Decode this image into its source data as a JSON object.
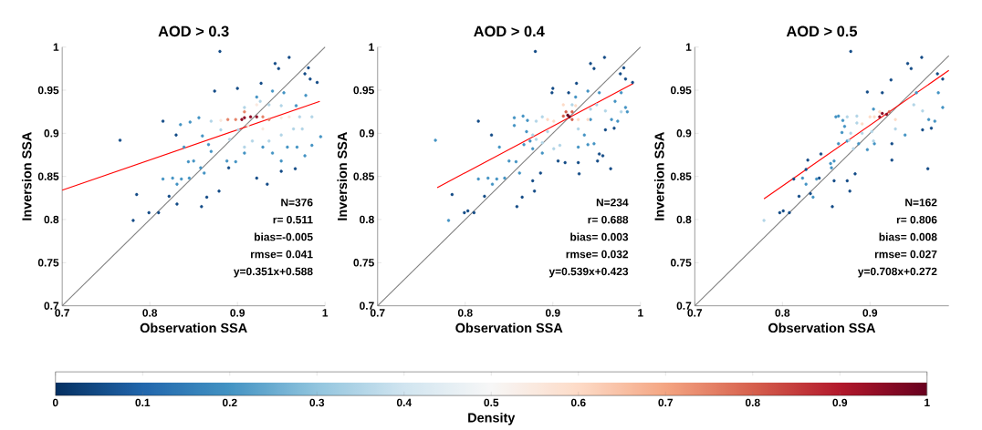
{
  "chart_data": [
    {
      "type": "scatter",
      "title": "AOD > 0.3",
      "xlabel": "Observation SSA",
      "ylabel": "Inversion SSA",
      "xlim": [
        0.7,
        1
      ],
      "ylim": [
        0.7,
        1
      ],
      "xticks": [
        0.7,
        0.8,
        0.9,
        1
      ],
      "yticks": [
        0.7,
        0.75,
        0.8,
        0.85,
        0.9,
        0.95,
        1
      ],
      "marker": "circle",
      "annotations": [
        "N=376",
        "r= 0.511",
        "bias=-0.005",
        "rmse= 0.041",
        "y=0.351x+0.588"
      ],
      "series": [
        {
          "color": "#134b87",
          "x": [
            0.766,
            0.88,
            0.959,
            0.943,
            0.947,
            0.874,
            0.9,
            0.815,
            0.83,
            0.785,
            0.781,
            0.799,
            0.81,
            0.859,
            0.879,
            0.865,
            0.822,
            0.831,
            0.966,
            0.934,
            0.95,
            0.922,
            0.89,
            0.927,
            0.983,
            0.991,
            0.977,
            0.981
          ],
          "values": [
            0.892,
            0.995,
            0.988,
            0.981,
            0.975,
            0.949,
            0.952,
            0.914,
            0.898,
            0.829,
            0.799,
            0.808,
            0.808,
            0.815,
            0.833,
            0.826,
            0.827,
            0.818,
            0.859,
            0.841,
            0.856,
            0.848,
            0.86,
            0.958,
            0.963,
            0.959,
            0.969,
            0.976
          ]
        },
        {
          "color": "#4393c3",
          "x": [
            0.815,
            0.826,
            0.831,
            0.836,
            0.845,
            0.858,
            0.862,
            0.85,
            0.844,
            0.87,
            0.867,
            0.86,
            0.839,
            0.835,
            0.846,
            0.856,
            0.888,
            0.898,
            0.908,
            0.929,
            0.94,
            0.95,
            0.957,
            0.968,
            0.977,
            0.985,
            0.995,
            0.967,
            0.978,
            0.953,
            0.94,
            0.922
          ],
          "values": [
            0.847,
            0.848,
            0.841,
            0.847,
            0.848,
            0.86,
            0.854,
            0.868,
            0.867,
            0.879,
            0.887,
            0.897,
            0.884,
            0.91,
            0.913,
            0.918,
            0.868,
            0.867,
            0.877,
            0.884,
            0.877,
            0.868,
            0.884,
            0.884,
            0.874,
            0.886,
            0.896,
            0.932,
            0.944,
            0.947,
            0.949,
            0.942
          ]
        },
        {
          "color": "#b2d5e7",
          "x": [
            0.87,
            0.881,
            0.891,
            0.908,
            0.917,
            0.936,
            0.95,
            0.964,
            0.974,
            0.985,
            0.971,
            0.926,
            0.936,
            0.95,
            0.908,
            0.901
          ],
          "values": [
            0.914,
            0.904,
            0.893,
            0.884,
            0.891,
            0.891,
            0.898,
            0.905,
            0.905,
            0.919,
            0.919,
            0.937,
            0.933,
            0.932,
            0.93,
            0.904
          ]
        },
        {
          "color": "#fae9df",
          "x": [
            0.881,
            0.95,
            0.959,
            0.929,
            0.922,
            0.912
          ],
          "values": [
            0.915,
            0.918,
            0.919,
            0.905,
            0.933,
            0.909
          ]
        },
        {
          "color": "#e58368",
          "x": [
            0.889,
            0.898,
            0.908,
            0.929,
            0.936
          ],
          "values": [
            0.916,
            0.916,
            0.925,
            0.919,
            0.916
          ]
        },
        {
          "color": "#8d0c25",
          "x": [
            0.908,
            0.915,
            0.922,
            0.905
          ],
          "values": [
            0.918,
            0.919,
            0.919,
            0.916
          ]
        },
        {
          "type": "line",
          "marker": "none",
          "color": "#808080",
          "x": [
            0.7,
            1
          ],
          "values": [
            0.7,
            1
          ]
        },
        {
          "type": "line",
          "marker": "none",
          "color": "#ff0000",
          "x": [
            0.7,
            0.994
          ],
          "values": [
            0.834,
            0.937
          ]
        }
      ]
    },
    {
      "type": "scatter",
      "title": "AOD > 0.4",
      "xlabel": "Observation SSA",
      "ylabel": "Inversion SSA",
      "xlim": [
        0.7,
        1
      ],
      "ylim": [
        0.7,
        1
      ],
      "xticks": [
        0.7,
        0.8,
        0.9,
        1
      ],
      "yticks": [
        0.7,
        0.75,
        0.8,
        0.85,
        0.9,
        0.95,
        1
      ],
      "marker": "circle",
      "clim": [
        0,
        1
      ],
      "clabel": "Density",
      "cticks": [
        0,
        0.1,
        0.2,
        0.3,
        0.4,
        0.5,
        0.6,
        0.7,
        0.8,
        0.9,
        1
      ],
      "annotations": [
        "N=234",
        "r= 0.688",
        "bias= 0.003",
        "rmse= 0.032",
        "y=0.539x+0.423"
      ],
      "series": [
        {
          "x": [
            0.88,
            0.959,
            0.943,
            0.947,
            0.9,
            0.899,
            0.815,
            0.83,
            0.785,
            0.799,
            0.803,
            0.81,
            0.859,
            0.879,
            0.865,
            0.822,
            0.877,
            0.886,
            0.906,
            0.914,
            0.929,
            0.93,
            0.951,
            0.953,
            0.957,
            0.966,
            0.927,
            0.918,
            0.983,
            0.977,
            0.981,
            0.991,
            0.96,
            0.97
          ],
          "values": [
            0.995,
            0.988,
            0.981,
            0.975,
            0.952,
            0.947,
            0.914,
            0.898,
            0.829,
            0.808,
            0.81,
            0.808,
            0.815,
            0.833,
            0.826,
            0.827,
            0.845,
            0.854,
            0.868,
            0.866,
            0.866,
            0.853,
            0.868,
            0.876,
            0.874,
            0.859,
            0.958,
            0.947,
            0.963,
            0.969,
            0.976,
            0.959,
            0.904,
            0.906
          ],
          "cvalues": [
            0.05,
            0.05,
            0.05,
            0.05,
            0.05,
            0.05,
            0.05,
            0.05,
            0.05,
            0.05,
            0.05,
            0.05,
            0.05,
            0.05,
            0.05,
            0.05,
            0.05,
            0.05,
            0.05,
            0.05,
            0.05,
            0.05,
            0.05,
            0.05,
            0.05,
            0.05,
            0.05,
            0.05,
            0.05,
            0.05,
            0.05,
            0.05,
            0.05,
            0.05
          ]
        },
        {
          "x": [
            0.766,
            0.781,
            0.815,
            0.826,
            0.831,
            0.836,
            0.845,
            0.858,
            0.862,
            0.85,
            0.839,
            0.856,
            0.866,
            0.856,
            0.871,
            0.867,
            0.87,
            0.888,
            0.929,
            0.94,
            0.947,
            0.936,
            0.943,
            0.967,
            0.974,
            0.983,
            0.985,
            0.978,
            0.971,
            0.953,
            0.94,
            0.926,
            0.874,
            0.877
          ],
          "values": [
            0.892,
            0.799,
            0.847,
            0.848,
            0.841,
            0.847,
            0.848,
            0.867,
            0.854,
            0.868,
            0.884,
            0.918,
            0.92,
            0.909,
            0.915,
            0.887,
            0.902,
            0.877,
            0.884,
            0.887,
            0.888,
            0.898,
            0.916,
            0.916,
            0.914,
            0.93,
            0.925,
            0.947,
            0.937,
            0.947,
            0.949,
            0.942,
            0.891,
            0.882
          ],
          "cvalues": [
            0.2,
            0.2,
            0.2,
            0.2,
            0.2,
            0.2,
            0.2,
            0.2,
            0.2,
            0.2,
            0.2,
            0.2,
            0.2,
            0.2,
            0.2,
            0.2,
            0.2,
            0.2,
            0.2,
            0.2,
            0.2,
            0.2,
            0.2,
            0.2,
            0.2,
            0.2,
            0.2,
            0.2,
            0.2,
            0.2,
            0.2,
            0.2,
            0.2,
            0.2
          ]
        },
        {
          "x": [
            0.881,
            0.888,
            0.877,
            0.881,
            0.888,
            0.901,
            0.908,
            0.894,
            0.95,
            0.96,
            0.978,
            0.929,
            0.943,
            0.922
          ],
          "values": [
            0.914,
            0.919,
            0.898,
            0.893,
            0.889,
            0.882,
            0.886,
            0.902,
            0.933,
            0.926,
            0.925,
            0.905,
            0.928,
            0.933
          ],
          "cvalues": [
            0.35,
            0.35,
            0.35,
            0.35,
            0.35,
            0.35,
            0.35,
            0.35,
            0.35,
            0.35,
            0.35,
            0.35,
            0.35,
            0.35
          ]
        },
        {
          "x": [
            0.894,
            0.901,
            0.912,
            0.926,
            0.94,
            0.929
          ],
          "values": [
            0.916,
            0.914,
            0.933,
            0.932,
            0.916,
            0.916
          ],
          "cvalues": [
            0.6,
            0.6,
            0.6,
            0.6,
            0.6,
            0.6
          ]
        },
        {
          "x": [
            0.915,
            0.922,
            0.912,
            0.922
          ],
          "values": [
            0.925,
            0.925,
            0.92,
            0.916
          ],
          "cvalues": [
            0.8,
            0.8,
            0.8,
            0.8
          ]
        },
        {
          "x": [
            0.917,
            0.919
          ],
          "values": [
            0.921,
            0.919
          ],
          "cvalues": [
            1,
            1
          ]
        },
        {
          "type": "line",
          "marker": "none",
          "color": "#808080",
          "x": [
            0.7,
            1
          ],
          "values": [
            0.7,
            1
          ]
        },
        {
          "type": "line",
          "marker": "none",
          "color": "#ff0000",
          "x": [
            0.768,
            0.992
          ],
          "values": [
            0.837,
            0.958
          ]
        }
      ]
    },
    {
      "type": "scatter",
      "title": "AOD > 0.5",
      "xlabel": "Observation SSA",
      "ylabel": "Inversion SSA",
      "xlim": [
        0.7,
        0.99
      ],
      "ylim": [
        0.7,
        1
      ],
      "xticks": [
        0.7,
        0.8,
        0.9
      ],
      "yticks": [
        0.7,
        0.75,
        0.8,
        0.85,
        0.9,
        0.95,
        1
      ],
      "marker": "circle",
      "annotations": [
        "N=162",
        "r= 0.806",
        "bias= 0.008",
        "rmse= 0.027",
        "y=0.708x+0.272"
      ],
      "series": [
        {
          "color": "#134b87",
          "x": [
            0.797,
            0.801,
            0.808,
            0.813,
            0.819,
            0.827,
            0.829,
            0.832,
            0.842,
            0.844,
            0.857,
            0.859,
            0.874,
            0.877,
            0.883,
            0.897,
            0.914,
            0.878,
            0.959,
            0.943,
            0.947,
            0.983,
            0.977,
            0.966,
            0.96,
            0.97,
            0.924,
            0.925,
            0.925
          ],
          "values": [
            0.808,
            0.81,
            0.808,
            0.847,
            0.827,
            0.858,
            0.869,
            0.83,
            0.848,
            0.876,
            0.815,
            0.845,
            0.845,
            0.833,
            0.853,
            0.948,
            0.947,
            0.995,
            0.988,
            0.981,
            0.975,
            0.963,
            0.969,
            0.859,
            0.904,
            0.906,
            0.962,
            0.888,
            0.869
          ]
        },
        {
          "color": "#4393c3",
          "x": [
            0.823,
            0.827,
            0.835,
            0.839,
            0.855,
            0.856,
            0.859,
            0.861,
            0.864,
            0.869,
            0.871,
            0.868,
            0.864,
            0.874,
            0.887,
            0.897,
            0.905,
            0.904,
            0.967,
            0.974,
            0.983,
            0.978,
            0.953,
            0.94
          ],
          "values": [
            0.848,
            0.841,
            0.826,
            0.847,
            0.865,
            0.86,
            0.868,
            0.919,
            0.92,
            0.915,
            0.908,
            0.901,
            0.888,
            0.891,
            0.888,
            0.881,
            0.888,
            0.928,
            0.916,
            0.914,
            0.93,
            0.947,
            0.947,
            0.898
          ]
        },
        {
          "color": "#b2d5e7",
          "x": [
            0.779,
            0.874,
            0.885,
            0.878,
            0.876,
            0.881,
            0.891,
            0.904,
            0.885,
            0.902,
            0.95,
            0.96,
            0.929
          ],
          "values": [
            0.799,
            0.919,
            0.92,
            0.9,
            0.892,
            0.882,
            0.9,
            0.891,
            0.912,
            0.902,
            0.933,
            0.926,
            0.905
          ]
        },
        {
          "color": "#fddbc7",
          "x": [
            0.891,
            0.9,
            0.911,
            0.905,
            0.929
          ],
          "values": [
            0.911,
            0.919,
            0.925,
            0.919,
            0.916
          ]
        },
        {
          "color": "#d6604d",
          "x": [
            0.922
          ],
          "values": [
            0.925
          ]
        },
        {
          "color": "#8d0c25",
          "x": [
            0.914,
            0.911,
            0.919
          ],
          "values": [
            0.923,
            0.919,
            0.922
          ]
        },
        {
          "type": "line",
          "marker": "none",
          "color": "#808080",
          "x": [
            0.7,
            0.99
          ],
          "values": [
            0.7,
            0.99
          ]
        },
        {
          "type": "line",
          "marker": "none",
          "color": "#ff0000",
          "x": [
            0.779,
            0.99
          ],
          "values": [
            0.824,
            0.973
          ]
        }
      ]
    }
  ]
}
